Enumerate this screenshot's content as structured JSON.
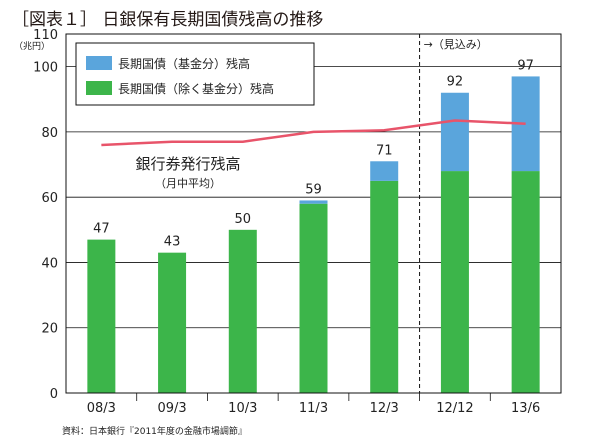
{
  "title": "［図表１］ 日銀保有長期国債残高の推移",
  "source": "資料：日本銀行『2011年度の金融市場調節』",
  "chart_data": {
    "type": "bar",
    "stacked": true,
    "categories": [
      "08/3",
      "09/3",
      "10/3",
      "11/3",
      "12/3",
      "12/12",
      "13/6"
    ],
    "ylabel": "（兆円）",
    "ylim": [
      0,
      110
    ],
    "yticks": [
      0,
      20,
      40,
      60,
      80,
      100,
      110
    ],
    "grid": true,
    "legend_position": "top-left",
    "series": [
      {
        "name": "長期国債（除く基金分）残高",
        "color": "#3cb54a",
        "values": [
          47,
          43,
          50,
          58,
          65,
          68,
          68
        ]
      },
      {
        "name": "長期国債（基金分）残高",
        "color": "#5aa5dc",
        "values": [
          0,
          0,
          0,
          1,
          6,
          24,
          29
        ]
      }
    ],
    "totals": [
      "47",
      "43",
      "50",
      "59",
      "71",
      "92",
      "97"
    ],
    "line": {
      "name": "銀行券発行残高",
      "subname": "（月中平均）",
      "color": "#e8546a",
      "values": [
        76,
        77,
        77,
        80,
        80.5,
        83.5,
        82.5
      ]
    },
    "forecast": {
      "label": "→（見込み）",
      "from_category_index": 5
    }
  }
}
